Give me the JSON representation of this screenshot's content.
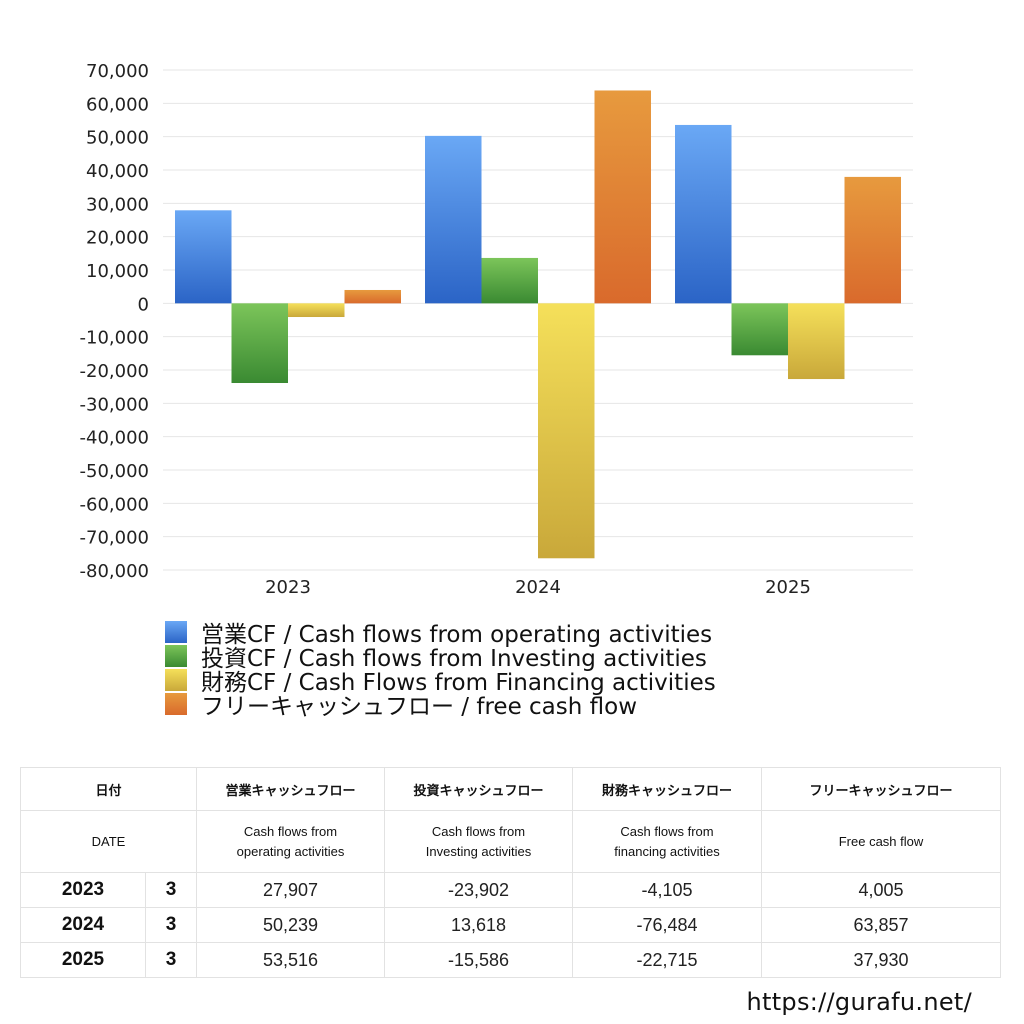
{
  "chart_data": {
    "type": "bar",
    "categories": [
      "2023",
      "2024",
      "2025"
    ],
    "ylim": [
      -80000,
      70000
    ],
    "ytick_step": 10000,
    "ytick_labels": [
      "70,000",
      "60,000",
      "50,000",
      "40,000",
      "30,000",
      "20,000",
      "10,000",
      "0",
      "-10,000",
      "-20,000",
      "-30,000",
      "-40,000",
      "-50,000",
      "-60,000",
      "-70,000",
      "-80,000"
    ],
    "grid": true,
    "legend_position": "bottom-left",
    "series": [
      {
        "name": "営業CF / Cash flows from operating activities",
        "values": [
          27907,
          50239,
          53516
        ],
        "color_top": "#6aa8f5",
        "color_bottom": "#2b64c6"
      },
      {
        "name": "投資CF / Cash flows from Investing activities",
        "values": [
          -23902,
          13618,
          -15586
        ],
        "color_top": "#7cc55a",
        "color_bottom": "#3a8a32"
      },
      {
        "name": "財務CF / Cash Flows from Financing activities",
        "values": [
          -4105,
          -76484,
          -22715
        ],
        "color_top": "#f5e05a",
        "color_bottom": "#c9a83a"
      },
      {
        "name": "フリーキャッシュフロー / free cash flow",
        "values": [
          4005,
          63857,
          37930
        ],
        "color_top": "#e79a3e",
        "color_bottom": "#d96a2c"
      }
    ]
  },
  "table": {
    "header_jp": [
      "日付",
      "営業キャッシュフロー",
      "投資キャッシュフロー",
      "財務キャッシュフロー",
      "フリーキャッシュフロー"
    ],
    "header_en": [
      "DATE",
      "Cash flows from operating activities",
      "Cash flows from Investing activities",
      "Cash flows from financing activities",
      "Free cash flow"
    ],
    "header_en_lines": [
      [
        "DATE"
      ],
      [
        "Cash flows from",
        "operating activities"
      ],
      [
        "Cash flows from",
        "Investing activities"
      ],
      [
        "Cash flows from",
        "financing activities"
      ],
      [
        "Free cash flow"
      ]
    ],
    "rows": [
      {
        "year": "2023",
        "month": "3",
        "values": [
          "27,907",
          "-23,902",
          "-4,105",
          "4,005"
        ]
      },
      {
        "year": "2024",
        "month": "3",
        "values": [
          "50,239",
          "13,618",
          "-76,484",
          "63,857"
        ]
      },
      {
        "year": "2025",
        "month": "3",
        "values": [
          "53,516",
          "-15,586",
          "-22,715",
          "37,930"
        ]
      }
    ],
    "negative_color": "#d0472c"
  },
  "footer": {
    "url": "https://gurafu.net/"
  }
}
